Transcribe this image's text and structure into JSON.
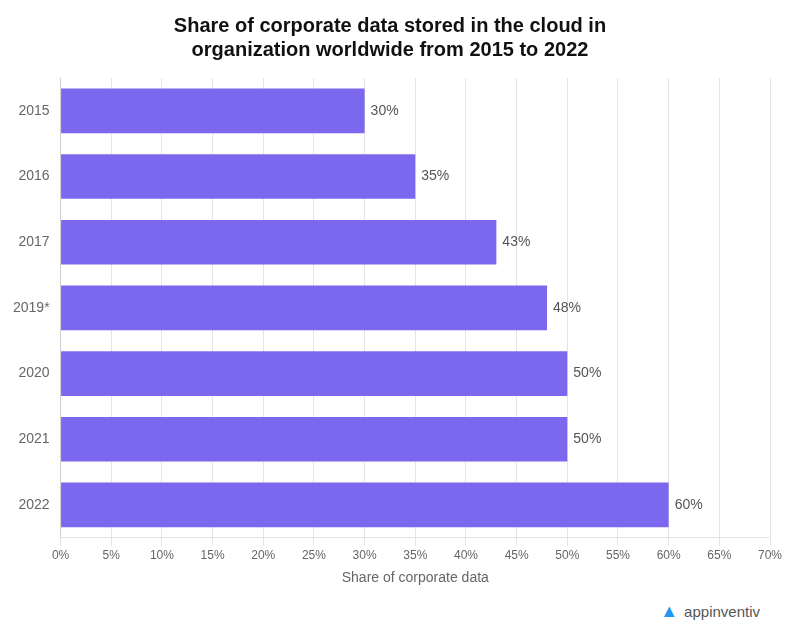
{
  "chart_data": {
    "type": "bar",
    "orientation": "horizontal",
    "title": "Share of corporate data stored in the cloud in\norganization worldwide from 2015 to 2022",
    "categories": [
      "2015",
      "2016",
      "2017",
      "2019*",
      "2020",
      "2021",
      "2022"
    ],
    "values": [
      30,
      35,
      43,
      48,
      50,
      50,
      60
    ],
    "value_labels": [
      "30%",
      "35%",
      "43%",
      "48%",
      "50%",
      "50%",
      "60%"
    ],
    "data_labels": true,
    "color": "#7B68EE",
    "xlabel": "Share of corporate data",
    "xlim": [
      0,
      70
    ],
    "xticks": [
      {
        "value": 0,
        "label": "0%"
      },
      {
        "value": 5,
        "label": "5%"
      },
      {
        "value": 10,
        "label": "10%"
      },
      {
        "value": 15,
        "label": "15%"
      },
      {
        "value": 20,
        "label": "20%"
      },
      {
        "value": 25,
        "label": "25%"
      },
      {
        "value": 30,
        "label": "30%"
      },
      {
        "value": 35,
        "label": "35%"
      },
      {
        "value": 40,
        "label": "40%"
      },
      {
        "value": 45,
        "label": "45%"
      },
      {
        "value": 50,
        "label": "50%"
      },
      {
        "value": 55,
        "label": "55%"
      },
      {
        "value": 60,
        "label": "60%"
      },
      {
        "value": 65,
        "label": "65%"
      },
      {
        "value": 70,
        "label": "70%"
      }
    ],
    "grid": true,
    "annotations": [
      {
        "text": "▲",
        "color": "#2196F3"
      },
      {
        "text": "appinventiv",
        "color": "#555555"
      }
    ]
  }
}
